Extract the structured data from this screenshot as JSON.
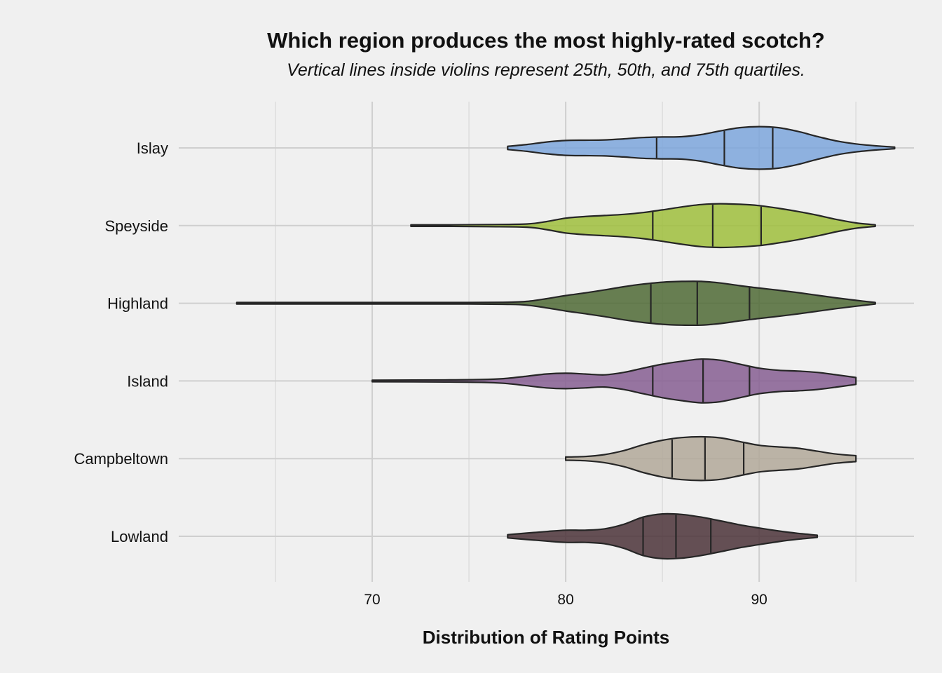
{
  "chart_data": {
    "type": "violin",
    "title": "Which region produces the most highly-rated scotch?",
    "subtitle": "Vertical lines inside violins represent 25th, 50th, and 75th quartiles.",
    "xlabel": "Distribution of Rating Points",
    "ylabel": "",
    "xlim": [
      60,
      98
    ],
    "x_ticks": [
      70,
      80,
      90
    ],
    "grid": "on",
    "legend": "none",
    "categories": [
      "Islay",
      "Speyside",
      "Highland",
      "Island",
      "Campbeltown",
      "Lowland"
    ],
    "series": [
      {
        "category": "Islay",
        "color": "#7ca6dc",
        "quartiles": [
          84.7,
          88.2,
          90.7
        ],
        "density": [
          [
            77,
            0.06
          ],
          [
            78,
            0.13
          ],
          [
            79,
            0.22
          ],
          [
            80,
            0.28
          ],
          [
            81,
            0.29
          ],
          [
            82,
            0.3
          ],
          [
            83,
            0.34
          ],
          [
            84,
            0.39
          ],
          [
            85,
            0.41
          ],
          [
            86,
            0.42
          ],
          [
            87,
            0.5
          ],
          [
            88,
            0.64
          ],
          [
            89,
            0.76
          ],
          [
            90,
            0.8
          ],
          [
            91,
            0.76
          ],
          [
            92,
            0.62
          ],
          [
            93,
            0.43
          ],
          [
            94,
            0.26
          ],
          [
            95,
            0.15
          ],
          [
            96,
            0.08
          ],
          [
            97,
            0.03
          ]
        ]
      },
      {
        "category": "Speyside",
        "color": "#9fbe3c",
        "quartiles": [
          84.5,
          87.6,
          90.1
        ],
        "density": [
          [
            72,
            0.03
          ],
          [
            74,
            0.03
          ],
          [
            76,
            0.04
          ],
          [
            78,
            0.06
          ],
          [
            79,
            0.15
          ],
          [
            80,
            0.28
          ],
          [
            81,
            0.34
          ],
          [
            82,
            0.38
          ],
          [
            83,
            0.42
          ],
          [
            84,
            0.49
          ],
          [
            85,
            0.59
          ],
          [
            86,
            0.7
          ],
          [
            87,
            0.79
          ],
          [
            88,
            0.82
          ],
          [
            89,
            0.8
          ],
          [
            90,
            0.75
          ],
          [
            91,
            0.65
          ],
          [
            92,
            0.53
          ],
          [
            93,
            0.39
          ],
          [
            94,
            0.23
          ],
          [
            95,
            0.1
          ],
          [
            96,
            0.03
          ]
        ]
      },
      {
        "category": "Highland",
        "color": "#4f6a35",
        "quartiles": [
          84.4,
          86.8,
          89.5
        ],
        "density": [
          [
            63,
            0.03
          ],
          [
            70,
            0.03
          ],
          [
            75,
            0.03
          ],
          [
            77,
            0.04
          ],
          [
            78,
            0.07
          ],
          [
            79,
            0.17
          ],
          [
            80,
            0.29
          ],
          [
            81,
            0.39
          ],
          [
            82,
            0.5
          ],
          [
            83,
            0.62
          ],
          [
            84,
            0.72
          ],
          [
            85,
            0.79
          ],
          [
            86,
            0.82
          ],
          [
            87,
            0.82
          ],
          [
            88,
            0.76
          ],
          [
            89,
            0.66
          ],
          [
            90,
            0.57
          ],
          [
            91,
            0.49
          ],
          [
            92,
            0.4
          ],
          [
            93,
            0.3
          ],
          [
            94,
            0.2
          ],
          [
            95,
            0.11
          ],
          [
            96,
            0.03
          ]
        ]
      },
      {
        "category": "Island",
        "color": "#865e92",
        "quartiles": [
          84.5,
          87.1,
          89.5
        ],
        "density": [
          [
            70,
            0.03
          ],
          [
            74,
            0.04
          ],
          [
            76,
            0.06
          ],
          [
            77,
            0.1
          ],
          [
            78,
            0.18
          ],
          [
            79,
            0.26
          ],
          [
            80,
            0.29
          ],
          [
            81,
            0.26
          ],
          [
            82,
            0.23
          ],
          [
            83,
            0.32
          ],
          [
            84,
            0.48
          ],
          [
            85,
            0.63
          ],
          [
            86,
            0.74
          ],
          [
            87,
            0.82
          ],
          [
            88,
            0.78
          ],
          [
            89,
            0.63
          ],
          [
            90,
            0.48
          ],
          [
            91,
            0.4
          ],
          [
            92,
            0.37
          ],
          [
            93,
            0.32
          ],
          [
            94,
            0.23
          ],
          [
            95,
            0.13
          ]
        ]
      },
      {
        "category": "Campbeltown",
        "color": "#b2a899",
        "quartiles": [
          85.5,
          87.2,
          89.2
        ],
        "density": [
          [
            80,
            0.06
          ],
          [
            81,
            0.08
          ],
          [
            82,
            0.15
          ],
          [
            83,
            0.3
          ],
          [
            84,
            0.52
          ],
          [
            85,
            0.69
          ],
          [
            86,
            0.79
          ],
          [
            87,
            0.82
          ],
          [
            88,
            0.78
          ],
          [
            89,
            0.64
          ],
          [
            90,
            0.5
          ],
          [
            91,
            0.44
          ],
          [
            92,
            0.39
          ],
          [
            93,
            0.28
          ],
          [
            94,
            0.17
          ],
          [
            95,
            0.11
          ]
        ]
      },
      {
        "category": "Lowland",
        "color": "#4b3338",
        "quartiles": [
          84.0,
          85.7,
          87.5
        ],
        "density": [
          [
            77,
            0.06
          ],
          [
            78,
            0.12
          ],
          [
            79,
            0.18
          ],
          [
            80,
            0.23
          ],
          [
            81,
            0.23
          ],
          [
            82,
            0.28
          ],
          [
            83,
            0.45
          ],
          [
            84,
            0.72
          ],
          [
            85,
            0.84
          ],
          [
            86,
            0.82
          ],
          [
            87,
            0.72
          ],
          [
            88,
            0.58
          ],
          [
            89,
            0.43
          ],
          [
            90,
            0.31
          ],
          [
            91,
            0.2
          ],
          [
            92,
            0.11
          ],
          [
            93,
            0.04
          ]
        ]
      }
    ]
  }
}
